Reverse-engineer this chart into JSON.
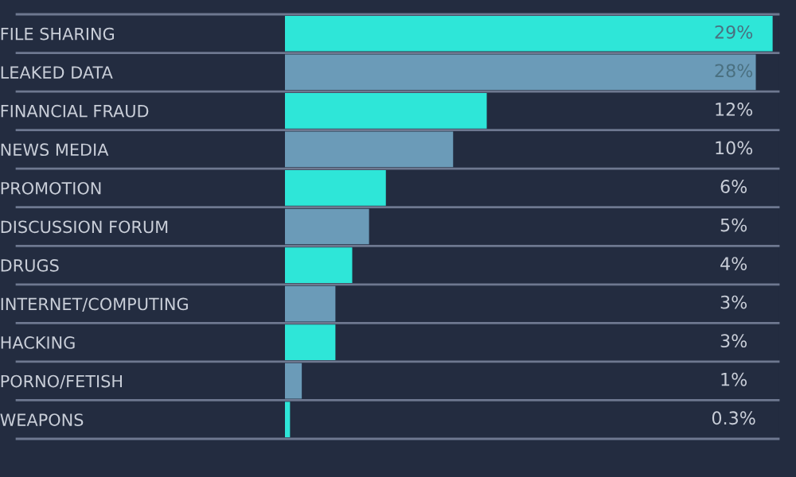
{
  "chart_data": {
    "type": "bar",
    "orientation": "horizontal",
    "categories": [
      "FILE SHARING",
      "LEAKED DATA",
      "FINANCIAL FRAUD",
      "NEWS MEDIA",
      "PROMOTION",
      "DISCUSSION FORUM",
      "DRUGS",
      "INTERNET/COMPUTING",
      "HACKING",
      "PORNO/FETISH",
      "WEAPONS"
    ],
    "values": [
      29,
      28,
      12,
      10,
      6,
      5,
      4,
      3,
      3,
      1,
      0.3
    ],
    "colors": [
      "#2ee6d8",
      "#6b9bb8",
      "#2ee6d8",
      "#6b9bb8",
      "#2ee6d8",
      "#6b9bb8",
      "#2ee6d8",
      "#6b9bb8",
      "#2ee6d8",
      "#6b9bb8",
      "#2ee6d8"
    ],
    "value_labels": [
      "29%",
      "28%",
      "12%",
      "10%",
      "6%",
      "5%",
      "4%",
      "3%",
      "3%",
      "1%",
      "0.3%"
    ],
    "grid": false,
    "legend": false
  }
}
